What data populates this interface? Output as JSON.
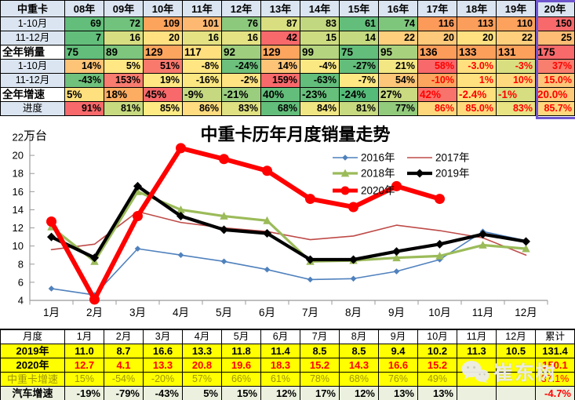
{
  "top_table": {
    "headers": [
      "中重卡",
      "08年",
      "09年",
      "10年",
      "11年",
      "12年",
      "13年",
      "14年",
      "15年",
      "16年",
      "17年",
      "18年",
      "19年",
      "20年"
    ],
    "header_bg": "#DBE5F1",
    "label_bg": "#DBE5F1",
    "red_text": "#FF0000",
    "highlight_border": "#6E56CF",
    "rows": [
      {
        "label": "1-10月",
        "big": false,
        "cells": [
          [
            "69",
            "#63BE7B"
          ],
          [
            "72",
            "#71C27C"
          ],
          [
            "109",
            "#FCA35C"
          ],
          [
            "101",
            "#FDB972"
          ],
          [
            "76",
            "#8CC97D"
          ],
          [
            "87",
            "#D9DF81"
          ],
          [
            "83",
            "#C2D880"
          ],
          [
            "61",
            "#63BE7B"
          ],
          [
            "74",
            "#7FC67D"
          ],
          [
            "116",
            "#FC9A59"
          ],
          [
            "113",
            "#FC9E5B"
          ],
          [
            "110",
            "#FCA25C"
          ],
          [
            "150",
            "#F8696B"
          ]
        ]
      },
      {
        "label": "11-12月",
        "big": false,
        "cells": [
          [
            "7",
            "#63BE7B"
          ],
          [
            "16",
            "#D7DE81"
          ],
          [
            "20",
            "#FFE182"
          ],
          [
            "16",
            "#E4E283"
          ],
          [
            "16",
            "#E4E283"
          ],
          [
            "42",
            "#F8696B"
          ],
          [
            "15",
            "#CEDC81"
          ],
          [
            "14",
            "#C5D980"
          ],
          [
            "22",
            "#FECF7C"
          ],
          [
            "20",
            "#FDC97A"
          ],
          [
            "20",
            "#FFE182"
          ],
          [
            "22",
            "#FECF7C"
          ],
          [
            "25",
            "#FDBD74"
          ]
        ]
      },
      {
        "label": "全年销量",
        "big": true,
        "cells": [
          [
            "75",
            "#63BE7B"
          ],
          [
            "89",
            "#7EC57D"
          ],
          [
            "129",
            "#FCA55E"
          ],
          [
            "117",
            "#FFDF7E"
          ],
          [
            "92",
            "#9FCE7E"
          ],
          [
            "129",
            "#FCA55E"
          ],
          [
            "99",
            "#B5D47F"
          ],
          [
            "75",
            "#63BE7B"
          ],
          [
            "95",
            "#A8D17E"
          ],
          [
            "136",
            "#FB9C5A"
          ],
          [
            "133",
            "#FB9F5B"
          ],
          [
            "131",
            "#FBA15C"
          ],
          [
            "175",
            "#F8696B"
          ]
        ]
      },
      {
        "label": "1-10月",
        "big": false,
        "cells": [
          [
            "14%",
            "#FDC377"
          ],
          [
            "5%",
            "#FFE783"
          ],
          [
            "51%",
            "#F9796D"
          ],
          [
            "-8%",
            "#FFE683"
          ],
          [
            "-24%",
            "#6CC07B"
          ],
          [
            "14%",
            "#FDC377"
          ],
          [
            "-4%",
            "#FAE883"
          ],
          [
            "-27%",
            "#63BE7B"
          ],
          [
            "21%",
            "#F3E784"
          ],
          [
            "58%",
            "#F8696B",
            "R"
          ],
          [
            "-3.0%",
            "#FFDF7E",
            "R"
          ],
          [
            "-3%",
            "#D9DF81",
            "R"
          ],
          [
            "37%",
            "#F87E6E",
            "R"
          ]
        ]
      },
      {
        "label": "11-12月",
        "big": false,
        "cells": [
          [
            "-43%",
            "#6FC17C"
          ],
          [
            "153%",
            "#F87C6F"
          ],
          [
            "19%",
            "#FFE883"
          ],
          [
            "-16%",
            "#FBE883"
          ],
          [
            "-2%",
            "#FFE383"
          ],
          [
            "159%",
            "#F8696B"
          ],
          [
            "-63%",
            "#63BE7B"
          ],
          [
            "-7%",
            "#FDE883"
          ],
          [
            "54%",
            "#FDC678"
          ],
          [
            "-10%",
            "#FCA55F",
            "R"
          ],
          [
            "1%",
            "#FFE17F",
            "R"
          ],
          [
            "10%",
            "#FED97D",
            "R"
          ],
          [
            "15.0%",
            "#FDC77A",
            "R"
          ]
        ]
      },
      {
        "label": "全年增速",
        "big": true,
        "cells": [
          [
            "5%",
            "#FFE07E"
          ],
          [
            "18%",
            "#FCAD62"
          ],
          [
            "45%",
            "#F8696B"
          ],
          [
            "-9%",
            "#C6D980"
          ],
          [
            "-21%",
            "#9ACD7E"
          ],
          [
            "40%",
            "#63BE7B"
          ],
          [
            "-23%",
            "#66BF7B"
          ],
          [
            "-24%",
            "#55BB79"
          ],
          [
            "27%",
            "#C9DA80"
          ],
          [
            "42%",
            "#F8736C",
            "R"
          ],
          [
            "-2.4%",
            "#FFE07E",
            "R"
          ],
          [
            "-1%",
            "#D6DE81",
            "R"
          ],
          [
            "20.0%",
            "#FDCA7A",
            "R"
          ]
        ]
      },
      {
        "label": "进度",
        "big": false,
        "cells": [
          [
            "91%",
            "#F8696B"
          ],
          [
            "81%",
            "#C7DA80"
          ],
          [
            "85%",
            "#FFEB84"
          ],
          [
            "86%",
            "#FEDC7F"
          ],
          [
            "83%",
            "#DFE182"
          ],
          [
            "68%",
            "#63BE7B"
          ],
          [
            "84%",
            "#F1E684"
          ],
          [
            "81%",
            "#C7DA80"
          ],
          [
            "77%",
            "#93CB7D"
          ],
          [
            "86%",
            "#FED77C",
            "R"
          ],
          [
            "85.0%",
            "#FEDA7D",
            "R"
          ],
          [
            "83%",
            "#E8E383",
            "R"
          ],
          [
            "85.7%",
            "#FED87D",
            "R"
          ]
        ]
      }
    ]
  },
  "chart_data": {
    "type": "line",
    "title": "中重卡历年月度销量走势",
    "unit_label": "万台",
    "x_labels": [
      "1月",
      "2月",
      "3月",
      "4月",
      "5月",
      "6月",
      "7月",
      "8月",
      "9月",
      "10月",
      "11月",
      "12月"
    ],
    "ylim": [
      4,
      22
    ],
    "ytick_step": 2,
    "grid": false,
    "legend_position": "top-right",
    "axis_color": "#999999",
    "series": [
      {
        "name": "2016年",
        "color": "#4F81BD",
        "width": 1.6,
        "marker": "diamond",
        "marker_size": 3.8,
        "values": [
          5.3,
          4.6,
          9.7,
          9.0,
          8.3,
          7.4,
          6.3,
          6.4,
          7.2,
          8.5,
          11.6,
          10.6
        ]
      },
      {
        "name": "2017年",
        "color": "#BE4B48",
        "width": 1.6,
        "marker": "none",
        "marker_size": 0,
        "values": [
          9.6,
          10.2,
          13.8,
          12.6,
          12.0,
          11.6,
          10.7,
          11.1,
          12.3,
          11.7,
          10.9,
          9.0
        ]
      },
      {
        "name": "2018年",
        "color": "#9BBB59",
        "width": 3.2,
        "marker": "triangle",
        "marker_size": 5.5,
        "values": [
          12.1,
          8.3,
          16.0,
          14.0,
          13.3,
          12.8,
          8.3,
          8.4,
          8.7,
          8.9,
          10.1,
          9.7
        ]
      },
      {
        "name": "2019年",
        "color": "#000000",
        "width": 4.2,
        "marker": "diamond",
        "marker_size": 5.5,
        "values": [
          11.0,
          8.7,
          16.6,
          13.3,
          11.8,
          11.4,
          8.5,
          8.5,
          9.4,
          10.2,
          11.3,
          10.5
        ]
      },
      {
        "name": "2020年",
        "color": "#FF0000",
        "width": 6,
        "marker": "circle",
        "marker_size": 6.5,
        "values": [
          12.7,
          4.1,
          13.3,
          20.8,
          19.6,
          18.3,
          15.2,
          14.3,
          16.6,
          15.2
        ]
      }
    ]
  },
  "bottom_table": {
    "headers": [
      "月度",
      "1月",
      "2月",
      "3月",
      "4月",
      "5月",
      "6月",
      "7月",
      "8月",
      "9月",
      "10月",
      "11月",
      "12月",
      "累计"
    ],
    "rows": [
      {
        "label": "2019年",
        "bg": "#FFFF00",
        "fg": "#000000",
        "bold": true,
        "ralign": false,
        "cells": [
          [
            "11.0"
          ],
          [
            "8.7"
          ],
          [
            "16.6"
          ],
          [
            "13.3"
          ],
          [
            "11.8"
          ],
          [
            "11.4"
          ],
          [
            "8.5"
          ],
          [
            "8.5"
          ],
          [
            "9.4"
          ],
          [
            "10.2"
          ],
          [
            "11.3"
          ],
          [
            "10.5"
          ],
          [
            "131.4"
          ]
        ]
      },
      {
        "label": "2020年",
        "bg": "#FFFF00",
        "fg": "#FF0000",
        "label_fg": "#000000",
        "bold": true,
        "ralign": false,
        "cells": [
          [
            "12.7"
          ],
          [
            "4.1"
          ],
          [
            "13.3"
          ],
          [
            "20.8"
          ],
          [
            "19.6"
          ],
          [
            "18.3"
          ],
          [
            "15.2"
          ],
          [
            "14.3"
          ],
          [
            "16.6"
          ],
          [
            "15.2"
          ],
          [
            ""
          ],
          [
            ""
          ],
          [
            "150.1"
          ]
        ]
      },
      {
        "label": "中重卡增速",
        "bg": "#FFFF00",
        "fg": "#A09600",
        "bold": false,
        "ralign": false,
        "cells": [
          [
            "15%"
          ],
          [
            "-54%"
          ],
          [
            "-20%"
          ],
          [
            "57%"
          ],
          [
            "66%"
          ],
          [
            "61%"
          ],
          [
            "78%"
          ],
          [
            "68%"
          ],
          [
            "76%"
          ],
          [
            "49%"
          ],
          [
            ""
          ],
          [
            ""
          ],
          [
            "37.1%",
            "#FF0000"
          ]
        ]
      },
      {
        "label": "汽车增速",
        "bg": "#EBF1DE",
        "fg": "#000000",
        "bold": true,
        "ralign": true,
        "cells": [
          [
            "-19%"
          ],
          [
            "-79%"
          ],
          [
            "-43%"
          ],
          [
            "5%"
          ],
          [
            "15%"
          ],
          [
            "12%"
          ],
          [
            "17%"
          ],
          [
            "12%"
          ],
          [
            "13%"
          ],
          [
            "13%"
          ],
          [
            ""
          ],
          [
            ""
          ],
          [
            "-4.7%",
            "#FF0000"
          ]
        ]
      }
    ]
  },
  "watermark": {
    "text": "崔东树",
    "icon": "wechat-icon",
    "color": "#ECECEC"
  }
}
